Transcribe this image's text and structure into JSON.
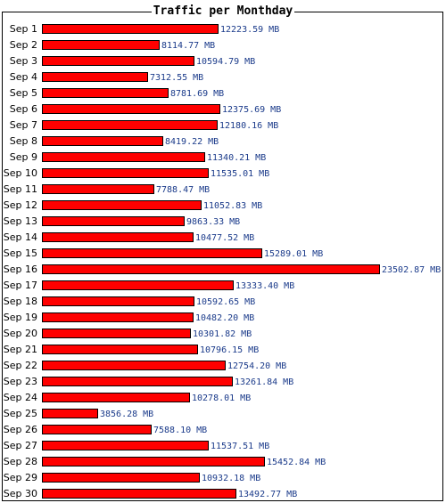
{
  "chart_data": {
    "type": "bar",
    "orientation": "horizontal",
    "title": "Traffic per Monthday",
    "xlabel": "",
    "ylabel": "",
    "unit": "MB",
    "grid": false,
    "bar_color": "#ff0000",
    "bar_border_color": "#000000",
    "value_label_color": "#1a3a8a",
    "categories": [
      "Sep 1",
      "Sep 2",
      "Sep 3",
      "Sep 4",
      "Sep 5",
      "Sep 6",
      "Sep 7",
      "Sep 8",
      "Sep 9",
      "Sep 10",
      "Sep 11",
      "Sep 12",
      "Sep 13",
      "Sep 14",
      "Sep 15",
      "Sep 16",
      "Sep 17",
      "Sep 18",
      "Sep 19",
      "Sep 20",
      "Sep 21",
      "Sep 22",
      "Sep 23",
      "Sep 24",
      "Sep 25",
      "Sep 26",
      "Sep 27",
      "Sep 28",
      "Sep 29",
      "Sep 30"
    ],
    "values": [
      12223.59,
      8114.77,
      10594.79,
      7312.55,
      8781.69,
      12375.69,
      12180.16,
      8419.22,
      11340.21,
      11535.01,
      7788.47,
      11052.83,
      9863.33,
      10477.52,
      15289.01,
      23502.87,
      13333.4,
      10592.65,
      10482.2,
      10301.82,
      10796.15,
      12754.2,
      13261.84,
      10278.01,
      3856.28,
      7588.1,
      11537.51,
      15452.84,
      10932.18,
      13492.77
    ],
    "value_labels": [
      "12223.59 MB",
      "8114.77 MB",
      "10594.79 MB",
      "7312.55 MB",
      "8781.69 MB",
      "12375.69 MB",
      "12180.16 MB",
      "8419.22 MB",
      "11340.21 MB",
      "11535.01 MB",
      "7788.47 MB",
      "11052.83 MB",
      "9863.33 MB",
      "10477.52 MB",
      "15289.01 MB",
      "23502.87 MB",
      "13333.40 MB",
      "10592.65 MB",
      "10482.20 MB",
      "10301.82 MB",
      "10796.15 MB",
      "12754.20 MB",
      "13261.84 MB",
      "10278.01 MB",
      "3856.28 MB",
      "7588.10 MB",
      "11537.51 MB",
      "15452.84 MB",
      "10932.18 MB",
      "13492.77 MB"
    ]
  }
}
